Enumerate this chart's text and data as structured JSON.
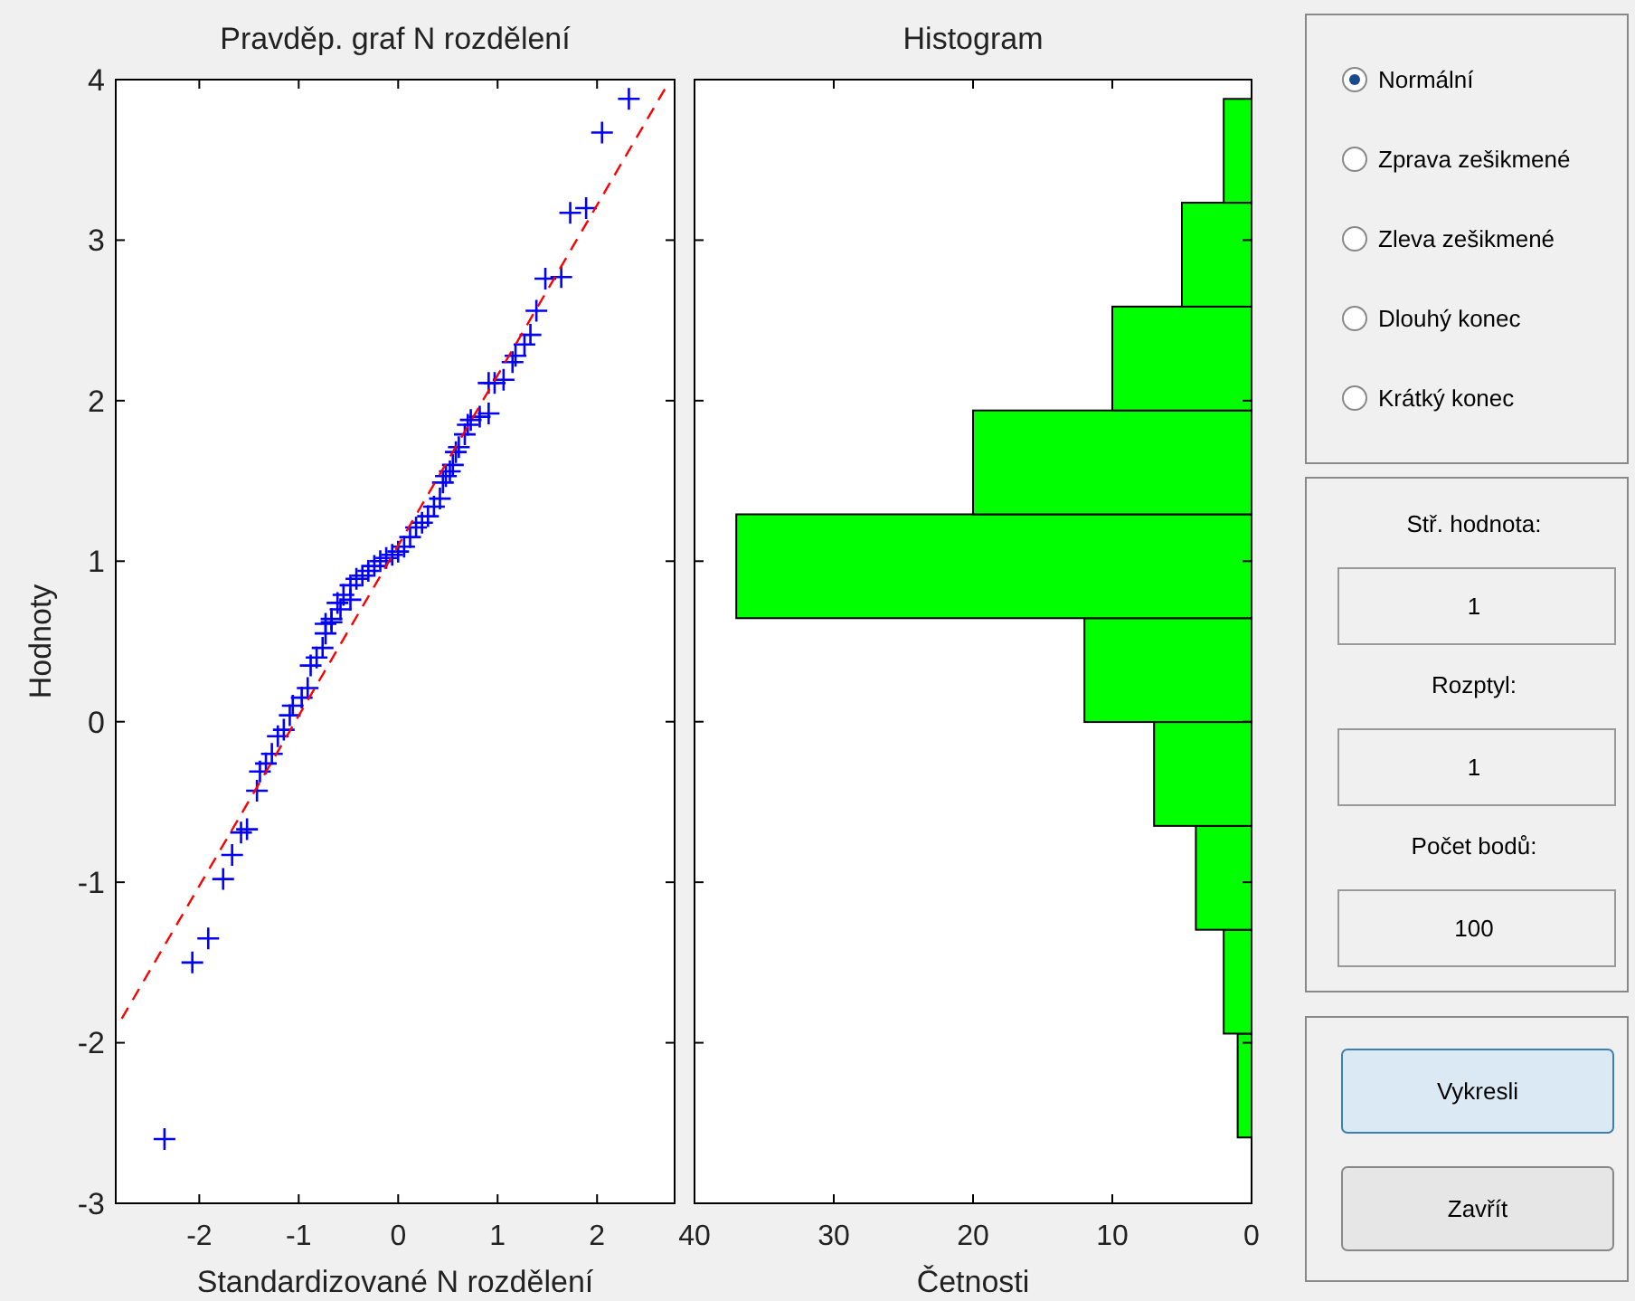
{
  "chart_data": [
    {
      "type": "scatter",
      "title": "Pravděp. graf N rozdělení",
      "xlabel": "Standardizované N rozdělení",
      "ylabel": "Hodnoty",
      "xlim": [
        -2.84,
        2.78
      ],
      "xticks": [
        -2,
        -1,
        0,
        1,
        2
      ],
      "ylim": [
        -3,
        4
      ],
      "yticks": [
        -3,
        -2,
        -1,
        0,
        1,
        2,
        3,
        4
      ],
      "marker": "cross",
      "series": [
        {
          "type": "scatter",
          "color": "#0000ff",
          "x": [
            -2.35,
            -2.07,
            -1.91,
            -1.76,
            -1.67,
            -1.58,
            -1.52,
            -1.42,
            -1.39,
            -1.33,
            -1.27,
            -1.21,
            -1.15,
            -1.09,
            -1.06,
            -0.97,
            -0.91,
            -0.88,
            -0.82,
            -0.76,
            -0.73,
            -0.67,
            -0.58,
            -0.48,
            -0.73,
            -0.67,
            -0.61,
            -0.55,
            -0.48,
            -0.42,
            -0.36,
            -0.3,
            -0.24,
            -0.18,
            -0.12,
            -0.06,
            0,
            0.06,
            0.12,
            0.18,
            0.24,
            0.3,
            0.36,
            0.42,
            0.45,
            0.48,
            0.52,
            0.55,
            0.58,
            0.61,
            0.67,
            0.7,
            0.73,
            0.82,
            0.91,
            0.91,
            0.97,
            1.06,
            1.15,
            1.18,
            1.27,
            1.33,
            1.39,
            1.48,
            1.64,
            1.73,
            1.89,
            2.05,
            2.32
          ],
          "values": [
            -2.6,
            -1.5,
            -1.35,
            -0.98,
            -0.83,
            -0.69,
            -0.67,
            -0.43,
            -0.31,
            -0.26,
            -0.2,
            -0.09,
            -0.05,
            0.04,
            0.1,
            0.15,
            0.21,
            0.35,
            0.4,
            0.46,
            0.55,
            0.62,
            0.7,
            0.76,
            0.61,
            0.64,
            0.74,
            0.79,
            0.85,
            0.89,
            0.91,
            0.94,
            0.97,
            1.0,
            1.02,
            1.04,
            1.06,
            1.09,
            1.15,
            1.21,
            1.24,
            1.28,
            1.34,
            1.39,
            1.49,
            1.53,
            1.56,
            1.6,
            1.68,
            1.71,
            1.79,
            1.85,
            1.88,
            1.9,
            1.92,
            2.11,
            2.11,
            2.13,
            2.24,
            2.28,
            2.35,
            2.41,
            2.56,
            2.76,
            2.77,
            3.17,
            3.2,
            3.67,
            3.88
          ]
        },
        {
          "type": "line",
          "color": "#ff0000",
          "line_style": "dashed",
          "marker": "none",
          "x": [
            -2.78,
            2.69
          ],
          "values": [
            -1.85,
            3.95
          ]
        }
      ]
    },
    {
      "type": "histogram",
      "orientation": "horizontal",
      "title": "Histogram",
      "xlabel": "Četnosti",
      "color": "#00ff00",
      "bins": [
        -2.59,
        -1.943,
        -1.296,
        -0.649,
        -0.002,
        0.645,
        1.292,
        1.939,
        2.586,
        3.233,
        3.88
      ],
      "values": [
        1,
        2,
        4,
        7,
        12,
        37,
        20,
        10,
        5,
        2
      ],
      "xlim": [
        40,
        0
      ],
      "xticks": [
        40,
        30,
        20,
        10,
        0
      ],
      "ylim": [
        -3,
        4
      ],
      "yticks": [
        -3,
        -2,
        -1,
        0,
        1,
        2,
        3,
        4
      ],
      "tick_labels": "x"
    },
    {
      "type": "other",
      "annotations": [
        "Normální",
        "Zprava zešikmené",
        "Zleva zešikmené",
        "Dlouhý konec",
        "Krátký konec",
        "Stř. hodnota:",
        "Rozptyl:",
        "Počet bodů:",
        "Vykresli",
        "Zavřít"
      ],
      "values": [
        1,
        1,
        100
      ],
      "data_labels": true
    }
  ]
}
